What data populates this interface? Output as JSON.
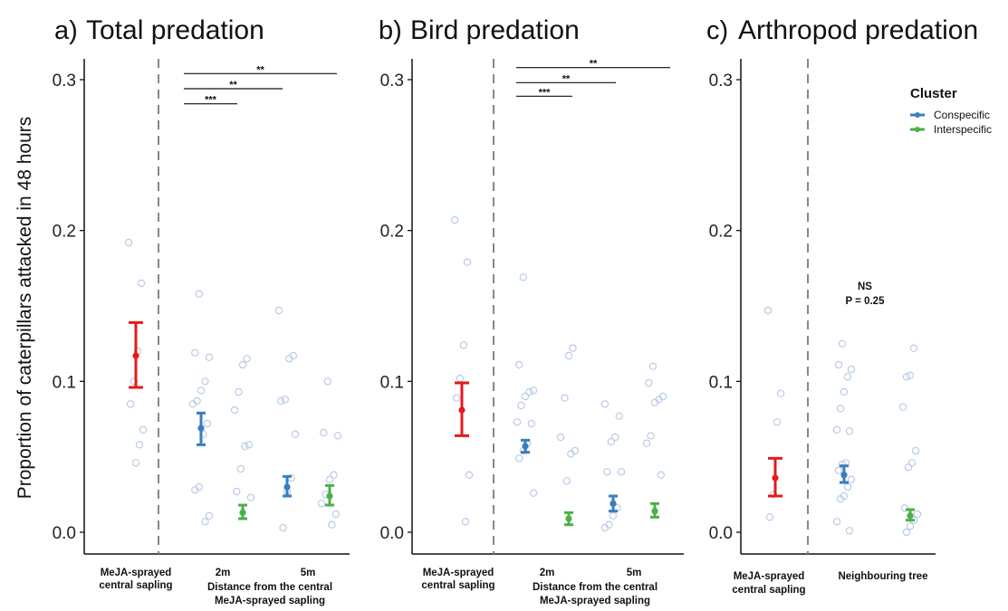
{
  "y_axis_label": "Proportion of caterpillars attacked in 48 hours",
  "y_ticks": [
    "0.0",
    "0.1",
    "0.2",
    "0.3"
  ],
  "legend": {
    "title": "Cluster",
    "items": [
      {
        "label": "Conspecific",
        "color": "#3a7dbf"
      },
      {
        "label": "Interspecific",
        "color": "#4daf4a"
      }
    ]
  },
  "colors": {
    "control": "#e41a1c",
    "conspecific": "#3a7dbf",
    "interspecific": "#4daf4a",
    "jitter": "#b9cbe6"
  },
  "chart_data": [
    {
      "type": "scatter",
      "panel": "a)",
      "title": "Total predation",
      "ylim": [
        0,
        0.3
      ],
      "categories": [
        "MeJA-sprayed central sapling",
        "2m",
        "5m"
      ],
      "x_label_lines": [
        "Distance from the central",
        "MeJA-sprayed sapling"
      ],
      "series": [
        {
          "group": "MeJA",
          "x": "MeJA-sprayed central sapling",
          "mean": 0.117,
          "lower": 0.096,
          "upper": 0.139,
          "points": [
            0.192,
            0.165,
            0.12,
            0.1,
            0.085,
            0.068,
            0.058,
            0.046
          ]
        },
        {
          "group": "Conspecific",
          "x": "2m",
          "mean": 0.069,
          "lower": 0.058,
          "upper": 0.079,
          "points": [
            0.158,
            0.119,
            0.116,
            0.1,
            0.094,
            0.087,
            0.085,
            0.072,
            0.065,
            0.03,
            0.028,
            0.011,
            0.007
          ]
        },
        {
          "group": "Interspecific",
          "x": "2m",
          "mean": 0.013,
          "lower": 0.009,
          "upper": 0.018,
          "points": [
            0.115,
            0.111,
            0.093,
            0.081,
            0.058,
            0.057,
            0.042,
            0.027,
            0.023
          ]
        },
        {
          "group": "Conspecific",
          "x": "5m",
          "mean": 0.03,
          "lower": 0.024,
          "upper": 0.037,
          "points": [
            0.147,
            0.117,
            0.115,
            0.088,
            0.087,
            0.065,
            0.036,
            0.027,
            0.003
          ]
        },
        {
          "group": "Interspecific",
          "x": "5m",
          "mean": 0.024,
          "lower": 0.018,
          "upper": 0.031,
          "points": [
            0.1,
            0.066,
            0.064,
            0.038,
            0.035,
            0.025,
            0.019,
            0.012,
            0.005
          ]
        }
      ],
      "brackets": [
        {
          "label": "**",
          "y": 0.304
        },
        {
          "label": "**",
          "y": 0.294
        },
        {
          "label": "***",
          "y": 0.284
        }
      ]
    },
    {
      "type": "scatter",
      "panel": "b)",
      "title": "Bird predation",
      "ylim": [
        0,
        0.3
      ],
      "categories": [
        "MeJA-sprayed central sapling",
        "2m",
        "5m"
      ],
      "x_label_lines": [
        "Distance from the central",
        "MeJA-sprayed sapling"
      ],
      "series": [
        {
          "group": "MeJA",
          "x": "MeJA-sprayed central sapling",
          "mean": 0.081,
          "lower": 0.064,
          "upper": 0.099,
          "points": [
            0.207,
            0.179,
            0.124,
            0.102,
            0.089,
            0.038,
            0.007
          ]
        },
        {
          "group": "Conspecific",
          "x": "2m",
          "mean": 0.057,
          "lower": 0.053,
          "upper": 0.061,
          "points": [
            0.169,
            0.111,
            0.094,
            0.093,
            0.09,
            0.084,
            0.073,
            0.072,
            0.059,
            0.054,
            0.049,
            0.026
          ]
        },
        {
          "group": "Interspecific",
          "x": "2m",
          "mean": 0.009,
          "lower": 0.005,
          "upper": 0.013,
          "points": [
            0.122,
            0.117,
            0.089,
            0.063,
            0.054,
            0.052,
            0.034
          ]
        },
        {
          "group": "Conspecific",
          "x": "5m",
          "mean": 0.019,
          "lower": 0.014,
          "upper": 0.024,
          "points": [
            0.085,
            0.077,
            0.063,
            0.06,
            0.04,
            0.04,
            0.016,
            0.011,
            0.005,
            0.003
          ]
        },
        {
          "group": "Interspecific",
          "x": "5m",
          "mean": 0.014,
          "lower": 0.01,
          "upper": 0.019,
          "points": [
            0.11,
            0.099,
            0.09,
            0.088,
            0.086,
            0.064,
            0.059,
            0.038
          ]
        }
      ],
      "brackets": [
        {
          "label": "**",
          "y": 0.308
        },
        {
          "label": "**",
          "y": 0.298
        },
        {
          "label": "***",
          "y": 0.289
        }
      ]
    },
    {
      "type": "scatter",
      "panel": "c)",
      "title": "Arthropod predation",
      "ylim": [
        0,
        0.3
      ],
      "categories": [
        "MeJA-sprayed central sapling",
        "Neighbouring tree"
      ],
      "x_label_lines": [],
      "series": [
        {
          "group": "MeJA",
          "x": "MeJA-sprayed central sapling",
          "mean": 0.036,
          "lower": 0.024,
          "upper": 0.049,
          "points": [
            0.147,
            0.092,
            0.073,
            0.025,
            0.01
          ]
        },
        {
          "group": "Conspecific",
          "x": "Neighbouring tree",
          "mean": 0.038,
          "lower": 0.033,
          "upper": 0.044,
          "points": [
            0.125,
            0.111,
            0.108,
            0.103,
            0.093,
            0.082,
            0.068,
            0.067,
            0.046,
            0.045,
            0.041,
            0.035,
            0.03,
            0.024,
            0.022,
            0.007,
            0.001
          ]
        },
        {
          "group": "Interspecific",
          "x": "Neighbouring tree",
          "mean": 0.011,
          "lower": 0.008,
          "upper": 0.015,
          "points": [
            0.122,
            0.104,
            0.103,
            0.083,
            0.054,
            0.046,
            0.043,
            0.016,
            0.012,
            0.008,
            0.004,
            0.0
          ]
        }
      ],
      "annotation": {
        "line1": "NS",
        "line2": "P = 0.25"
      }
    }
  ]
}
